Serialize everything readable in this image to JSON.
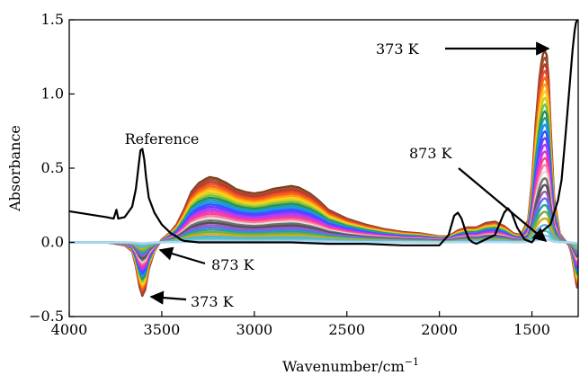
{
  "chart_data": {
    "type": "line",
    "xlabel": "Wavenumber/cm",
    "xlabel_superscript": "−1",
    "ylabel": "Absorbance",
    "xlim": [
      4000,
      1250
    ],
    "ylim": [
      -0.5,
      1.5
    ],
    "x_reversed": true,
    "grid": false,
    "legend": "none",
    "x_ticks": [
      4000,
      3500,
      3000,
      2500,
      2000,
      1500
    ],
    "x_tick_labels": [
      "4000",
      "3500",
      "3000",
      "2500",
      "2000",
      "1500"
    ],
    "y_ticks": [
      -0.5,
      0.0,
      0.5,
      1.0,
      1.5
    ],
    "y_tick_labels": [
      "−0.5",
      "0.0",
      "0.5",
      "1.0",
      "1.5"
    ],
    "annotations": [
      {
        "text": "Reference",
        "x": 3600,
        "y": 0.66
      },
      {
        "text": "373 K",
        "x": 1460,
        "y": 1.3
      },
      {
        "text": "873 K",
        "x": 1500,
        "y": 0.3
      },
      {
        "text": "873 K",
        "x": 3570,
        "y": -0.07
      },
      {
        "text": "373 K",
        "x": 3590,
        "y": -0.38
      }
    ],
    "series_temperature_range_K": [
      373,
      873
    ],
    "series": [
      {
        "role": "reference",
        "color": "#000000",
        "x": [
          4000,
          3900,
          3800,
          3760,
          3745,
          3735,
          3700,
          3660,
          3640,
          3625,
          3615,
          3605,
          3595,
          3585,
          3570,
          3540,
          3500,
          3450,
          3420,
          3400,
          3380,
          3300,
          3200,
          3000,
          2800,
          2600,
          2400,
          2200,
          2100,
          2000,
          1950,
          1920,
          1900,
          1880,
          1860,
          1840,
          1820,
          1800,
          1750,
          1700,
          1650,
          1630,
          1610,
          1580,
          1540,
          1500,
          1470,
          1440,
          1420,
          1400,
          1380,
          1360,
          1340,
          1320,
          1300,
          1280,
          1270,
          1262,
          1255
        ],
        "y": [
          0.21,
          0.19,
          0.17,
          0.16,
          0.22,
          0.16,
          0.17,
          0.24,
          0.36,
          0.52,
          0.62,
          0.63,
          0.56,
          0.44,
          0.3,
          0.2,
          0.12,
          0.06,
          0.04,
          0.02,
          0.01,
          0.0,
          0.0,
          0.0,
          0.0,
          -0.01,
          -0.01,
          -0.02,
          -0.02,
          -0.02,
          0.05,
          0.18,
          0.2,
          0.16,
          0.08,
          0.02,
          0.0,
          -0.01,
          0.02,
          0.05,
          0.2,
          0.23,
          0.2,
          0.1,
          0.02,
          0.0,
          0.05,
          0.08,
          0.1,
          0.12,
          0.2,
          0.28,
          0.42,
          0.7,
          1.0,
          1.3,
          1.42,
          1.48,
          1.5
        ]
      }
    ],
    "spectrum_profile": {
      "x": [
        4000,
        3900,
        3800,
        3700,
        3660,
        3640,
        3620,
        3605,
        3590,
        3570,
        3540,
        3500,
        3460,
        3420,
        3380,
        3340,
        3300,
        3260,
        3240,
        3200,
        3150,
        3100,
        3050,
        3000,
        2950,
        2900,
        2850,
        2800,
        2760,
        2700,
        2650,
        2600,
        2500,
        2400,
        2300,
        2200,
        2100,
        2000,
        1950,
        1900,
        1850,
        1800,
        1750,
        1700,
        1650,
        1600,
        1560,
        1520,
        1500,
        1480,
        1460,
        1450,
        1440,
        1430,
        1420,
        1410,
        1400,
        1380,
        1350,
        1320,
        1300,
        1290,
        1280,
        1270,
        1260,
        1255
      ],
      "y": [
        0.0,
        0.0,
        0.0,
        -0.02,
        -0.06,
        -0.16,
        -0.3,
        -0.36,
        -0.32,
        -0.18,
        -0.06,
        0.02,
        0.06,
        0.12,
        0.22,
        0.34,
        0.4,
        0.43,
        0.44,
        0.43,
        0.4,
        0.36,
        0.34,
        0.33,
        0.34,
        0.36,
        0.37,
        0.38,
        0.37,
        0.33,
        0.28,
        0.22,
        0.16,
        0.12,
        0.09,
        0.07,
        0.06,
        0.04,
        0.04,
        0.08,
        0.1,
        0.1,
        0.13,
        0.14,
        0.11,
        0.06,
        0.05,
        0.15,
        0.4,
        0.8,
        1.1,
        1.2,
        1.27,
        1.29,
        1.26,
        1.1,
        0.8,
        0.3,
        0.06,
        0.01,
        -0.02,
        -0.06,
        -0.12,
        -0.2,
        -0.28,
        -0.31
      ]
    },
    "spectra_scales": [
      1.0,
      0.965,
      0.93,
      0.895,
      0.86,
      0.825,
      0.79,
      0.755,
      0.72,
      0.685,
      0.65,
      0.615,
      0.58,
      0.545,
      0.51,
      0.475,
      0.44,
      0.405,
      0.37,
      0.335,
      0.3,
      0.265,
      0.23,
      0.195,
      0.16,
      0.125,
      0.09,
      0.06,
      0.035,
      0.015
    ],
    "spectra_colors": [
      "#7f3f1f",
      "#a0522d",
      "#c0392b",
      "#e74c3c",
      "#ff6a00",
      "#ff9f1a",
      "#ffd11a",
      "#c8d41e",
      "#7bc043",
      "#2e8b57",
      "#1aa3a3",
      "#1e90ff",
      "#3355ff",
      "#6a3dff",
      "#a63dff",
      "#d63ad1",
      "#ff3f8e",
      "#ff7aa0",
      "#e0e0e0",
      "#707070",
      "#505050",
      "#9b59b6",
      "#5d6dff",
      "#2aa198",
      "#6ab04c",
      "#d4ac0d",
      "#5dade2",
      "#48c9b0",
      "#85c1e9",
      "#aed6f1"
    ]
  }
}
